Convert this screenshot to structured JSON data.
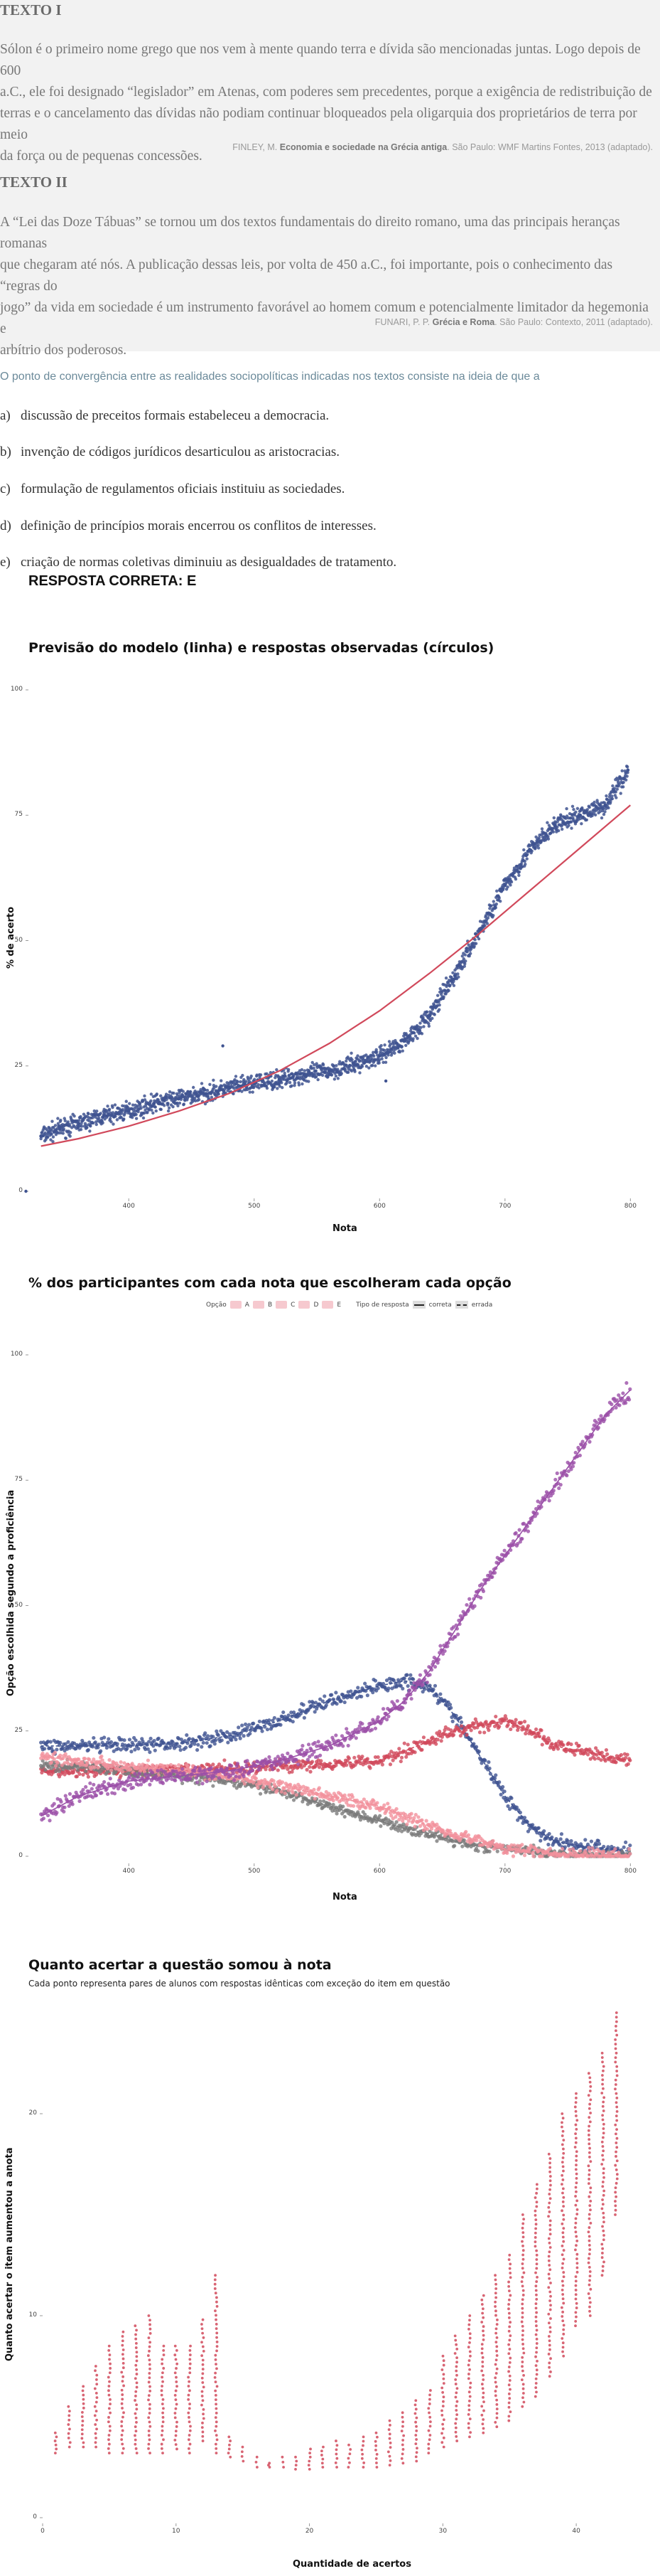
{
  "texto1": {
    "title": "TEXTO I",
    "lines": [
      "Sólon é o primeiro nome grego que nos vem à mente quando terra e dívida são mencionadas juntas. Logo depois de 600",
      "a.C., ele foi designado “legislador” em Atenas, com poderes sem precedentes, porque a exigência de redistribuição de",
      "terras e o cancelamento das dívidas não podiam continuar bloqueados pela oligarquia dos proprietários de terra por meio",
      "da força ou de pequenas concessões."
    ],
    "source_pre": "FINLEY, M. ",
    "source_bold": "Economia e sociedade na Grécia antiga",
    "source_post": ". São Paulo: WMF Martins Fontes, 2013 (adaptado)."
  },
  "texto2": {
    "title": "TEXTO II",
    "lines": [
      "A “Lei das Doze Tábuas” se tornou um dos textos fundamentais do direito romano, uma das principais heranças romanas",
      "que chegaram até nós. A publicação dessas leis, por volta de 450 a.C., foi importante, pois o conhecimento das “regras do",
      "jogo” da vida em sociedade é um instrumento favorável ao homem comum e potencialmente limitador da hegemonia e",
      "arbítrio dos poderosos."
    ],
    "source_pre": "FUNARI, P. P. ",
    "source_bold": "Grécia e Roma",
    "source_post": ". São Paulo: Contexto, 2011 (adaptado)."
  },
  "question": {
    "stem": "O ponto de convergência entre as realidades sociopolíticas indicadas nos textos consiste na ideia de que a",
    "options": [
      {
        "letter": "a)",
        "text": "discussão de preceitos formais estabeleceu a democracia."
      },
      {
        "letter": "b)",
        "text": "invenção de códigos jurídicos desarticulou as aristocracias."
      },
      {
        "letter": "c)",
        "text": "formulação de regulamentos oficiais instituiu as sociedades."
      },
      {
        "letter": "d)",
        "text": "definição de princípios morais encerrou os conflitos de interesses."
      },
      {
        "letter": "e)",
        "text": "criação de normas coletivas diminuiu as desigualdades de tratamento."
      }
    ],
    "answer_label": "RESPOSTA CORRETA: E"
  },
  "colors": {
    "blue": "#3f5391",
    "red": "#d1495b",
    "pink": "#f2919c",
    "purple": "#9b4fa8",
    "gray": "#7a7a7a"
  },
  "chart_data": [
    {
      "type": "scatter",
      "title": "Previsão do modelo (linha) e respostas observadas (círculos)",
      "xlabel": "Nota",
      "ylabel": "% de acerto",
      "x_ticks": [
        400,
        500,
        600,
        700,
        800
      ],
      "y_ticks": [
        0,
        25,
        50,
        75,
        100
      ],
      "xlim": [
        320,
        810
      ],
      "ylim": [
        0,
        100
      ],
      "observed": {
        "x": [
          330,
          345,
          360,
          380,
          400,
          420,
          440,
          460,
          480,
          500,
          520,
          540,
          560,
          580,
          600,
          620,
          640,
          660,
          680,
          700,
          720,
          740,
          760,
          780,
          798
        ],
        "y": [
          11,
          12.5,
          13.5,
          15,
          16,
          17.5,
          18.5,
          19.5,
          20.5,
          21.5,
          22.3,
          23.2,
          24,
          25.3,
          27,
          30,
          35,
          43,
          52,
          61,
          68,
          73,
          75,
          77,
          84
        ]
      },
      "outliers": {
        "x": [
          313,
          475,
          605
        ],
        "y": [
          0,
          29,
          22
        ]
      },
      "model": {
        "x": [
          330,
          360,
          400,
          440,
          480,
          520,
          560,
          600,
          640,
          680,
          720,
          760,
          800
        ],
        "y": [
          9,
          10.5,
          13,
          16,
          19.5,
          24,
          29.5,
          36,
          43.5,
          51.5,
          60,
          68.5,
          77
        ]
      }
    },
    {
      "type": "line",
      "title": "% dos participantes com cada nota que escolheram cada opção",
      "xlabel": "Nota",
      "ylabel": "Opção escolhida segundo a proficiência",
      "legend_option_title": "Opção",
      "legend_options": [
        "A",
        "B",
        "C",
        "D",
        "E"
      ],
      "legend_type_title": "Tipo de resposta",
      "legend_types": [
        "correta",
        "errada"
      ],
      "x_ticks": [
        400,
        500,
        600,
        700,
        800
      ],
      "y_ticks": [
        0,
        25,
        50,
        75,
        100
      ],
      "xlim": [
        320,
        810
      ],
      "ylim": [
        0,
        100
      ],
      "x": [
        330,
        360,
        400,
        440,
        480,
        520,
        560,
        600,
        620,
        640,
        660,
        680,
        700,
        720,
        740,
        760,
        780,
        800
      ],
      "series": [
        {
          "name": "A",
          "values": [
            22,
            22,
            22,
            22.5,
            24,
            27,
            31,
            34,
            35,
            34,
            28,
            20,
            12,
            6,
            3,
            2,
            1.5,
            1
          ]
        },
        {
          "name": "B",
          "values": [
            17,
            17,
            17,
            17,
            17.5,
            18,
            18.5,
            19,
            21,
            23,
            25,
            26,
            27,
            25,
            22,
            21,
            20,
            19
          ]
        },
        {
          "name": "C",
          "values": [
            18,
            18,
            17,
            16,
            15,
            13,
            10,
            7,
            5.5,
            4.5,
            3,
            2,
            1.5,
            1,
            0.6,
            0.3,
            0.2,
            0.1
          ]
        },
        {
          "name": "D",
          "values": [
            20,
            19,
            18,
            17,
            16,
            14,
            12,
            10,
            8,
            6,
            4.5,
            3,
            1.5,
            1,
            0.5,
            0.3,
            0.2,
            0.1
          ]
        },
        {
          "name": "E",
          "values": [
            8,
            12,
            15,
            16,
            17,
            19,
            22,
            27,
            31,
            37,
            45,
            53,
            60,
            67,
            74,
            81,
            88,
            93
          ]
        }
      ]
    },
    {
      "type": "scatter",
      "title": "Quanto acertar a questão somou à nota",
      "subtitle": "Cada ponto representa pares de alunos com respostas idênticas com exceção do item em questão",
      "xlabel": "Quantidade de acertos",
      "ylabel": "Quanto acertar o item aumentou a anota",
      "x_ticks": [
        0,
        10,
        20,
        30,
        40
      ],
      "y_ticks": [
        0,
        10,
        20
      ],
      "xlim": [
        0,
        45
      ],
      "ylim": [
        0,
        25
      ],
      "x": [
        1,
        2,
        3,
        4,
        5,
        6,
        7,
        8,
        9,
        10,
        11,
        12,
        13,
        14,
        15,
        16,
        17,
        18,
        19,
        20,
        21,
        22,
        23,
        24,
        25,
        26,
        27,
        28,
        29,
        30,
        31,
        32,
        33,
        34,
        35,
        36,
        37,
        38,
        39,
        40,
        41,
        42,
        43
      ],
      "y_min": [
        3.2,
        3.5,
        3.5,
        3.5,
        3.2,
        3.2,
        3.2,
        3.2,
        3.2,
        3.4,
        3.2,
        3.8,
        3.2,
        3.0,
        2.8,
        2.5,
        2.5,
        2.5,
        2.4,
        2.4,
        2.5,
        2.5,
        2.5,
        2.5,
        2.5,
        2.6,
        2.7,
        2.8,
        3.2,
        3.5,
        3.8,
        4.0,
        4.2,
        4.5,
        4.8,
        5.5,
        6.0,
        7.0,
        8.0,
        9.5,
        10.0,
        12.0,
        15.0
      ],
      "y_max": [
        4.2,
        5.5,
        6.5,
        7.5,
        8.5,
        9.2,
        9.5,
        10.0,
        8.5,
        8.5,
        8.5,
        9.8,
        12.0,
        4.0,
        3.5,
        3.0,
        2.7,
        3.0,
        3.0,
        3.4,
        3.5,
        3.8,
        3.6,
        4.0,
        4.2,
        4.8,
        5.2,
        5.8,
        6.3,
        8.0,
        9.0,
        10.0,
        11.0,
        12.0,
        13.0,
        15.0,
        16.5,
        18.0,
        20.0,
        21.0,
        22.0,
        23.0,
        25.0
      ]
    }
  ]
}
